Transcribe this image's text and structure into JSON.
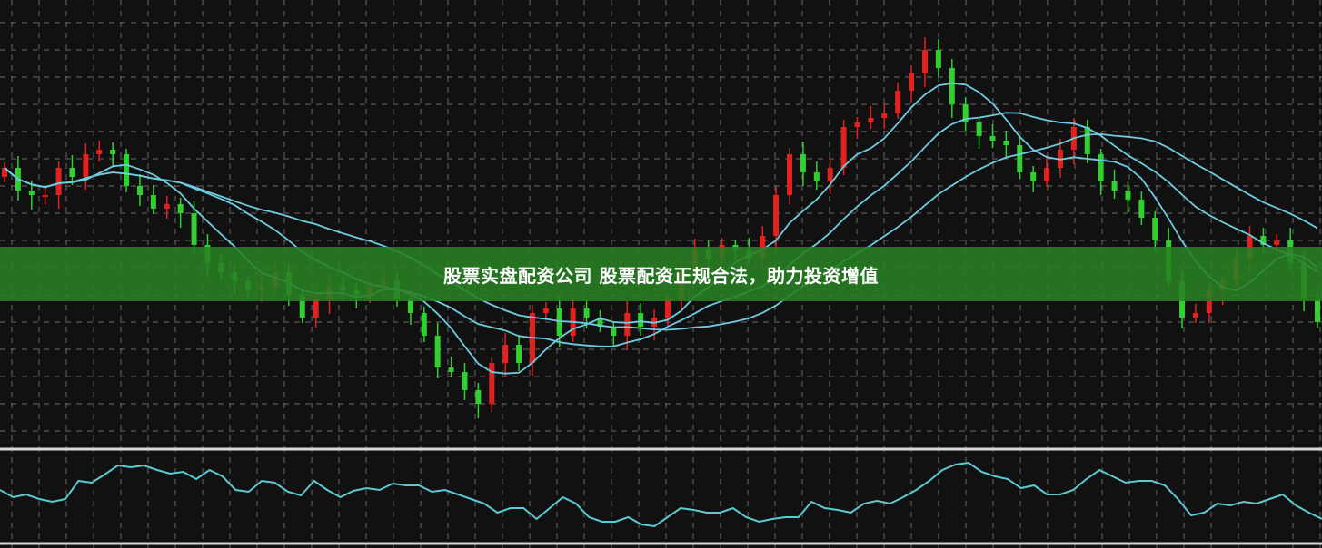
{
  "banner": {
    "title": "股票实盘配资公司 股票配资正规合法，助力投资增值"
  },
  "colors": {
    "background": "#111111",
    "up": "#e3211f",
    "down": "#2fd02f",
    "ma": "#6fcbe0",
    "oscillator": "#5cc9d0",
    "grid": "#8a8a8a",
    "banner": "#2a8022"
  },
  "chart_data": [
    {
      "type": "candlestick",
      "title": "",
      "grid": true,
      "closes": [
        315,
        290,
        285,
        285,
        315,
        305,
        330,
        335,
        330,
        295,
        285,
        270,
        275,
        265,
        230,
        210,
        200,
        190,
        180,
        185,
        200,
        175,
        150,
        170,
        185,
        180,
        175,
        185,
        190,
        170,
        155,
        130,
        95,
        90,
        70,
        55,
        100,
        120,
        100,
        155,
        160,
        130,
        160,
        150,
        140,
        130,
        155,
        140,
        150,
        170,
        200,
        225,
        215,
        230,
        225,
        215,
        240,
        285,
        330,
        310,
        300,
        315,
        360,
        365,
        370,
        375,
        400,
        420,
        445,
        425,
        385,
        365,
        350,
        345,
        340,
        310,
        300,
        315,
        335,
        360,
        330,
        300,
        290,
        280,
        260,
        235,
        190,
        150,
        155,
        180,
        190,
        215,
        240,
        230,
        235,
        210,
        170,
        145
      ],
      "overlays": "moving averages"
    },
    {
      "type": "line",
      "title": "",
      "grid": true,
      "values": [
        60,
        52,
        55,
        50,
        47,
        50,
        70,
        68,
        77,
        87,
        85,
        87,
        82,
        78,
        80,
        72,
        82,
        75,
        60,
        58,
        70,
        68,
        58,
        54,
        70,
        60,
        52,
        59,
        62,
        60,
        67,
        65,
        65,
        58,
        60,
        55,
        50,
        45,
        35,
        40,
        40,
        28,
        40,
        52,
        45,
        30,
        25,
        25,
        30,
        22,
        20,
        30,
        40,
        38,
        35,
        35,
        40,
        30,
        25,
        28,
        30,
        30,
        47,
        40,
        38,
        35,
        45,
        48,
        45,
        52,
        60,
        70,
        82,
        88,
        90,
        80,
        75,
        72,
        62,
        65,
        55,
        55,
        60,
        72,
        82,
        75,
        68,
        70,
        70,
        65,
        50,
        32,
        35,
        45,
        43,
        47,
        45,
        50,
        55,
        43,
        35,
        28
      ]
    }
  ]
}
